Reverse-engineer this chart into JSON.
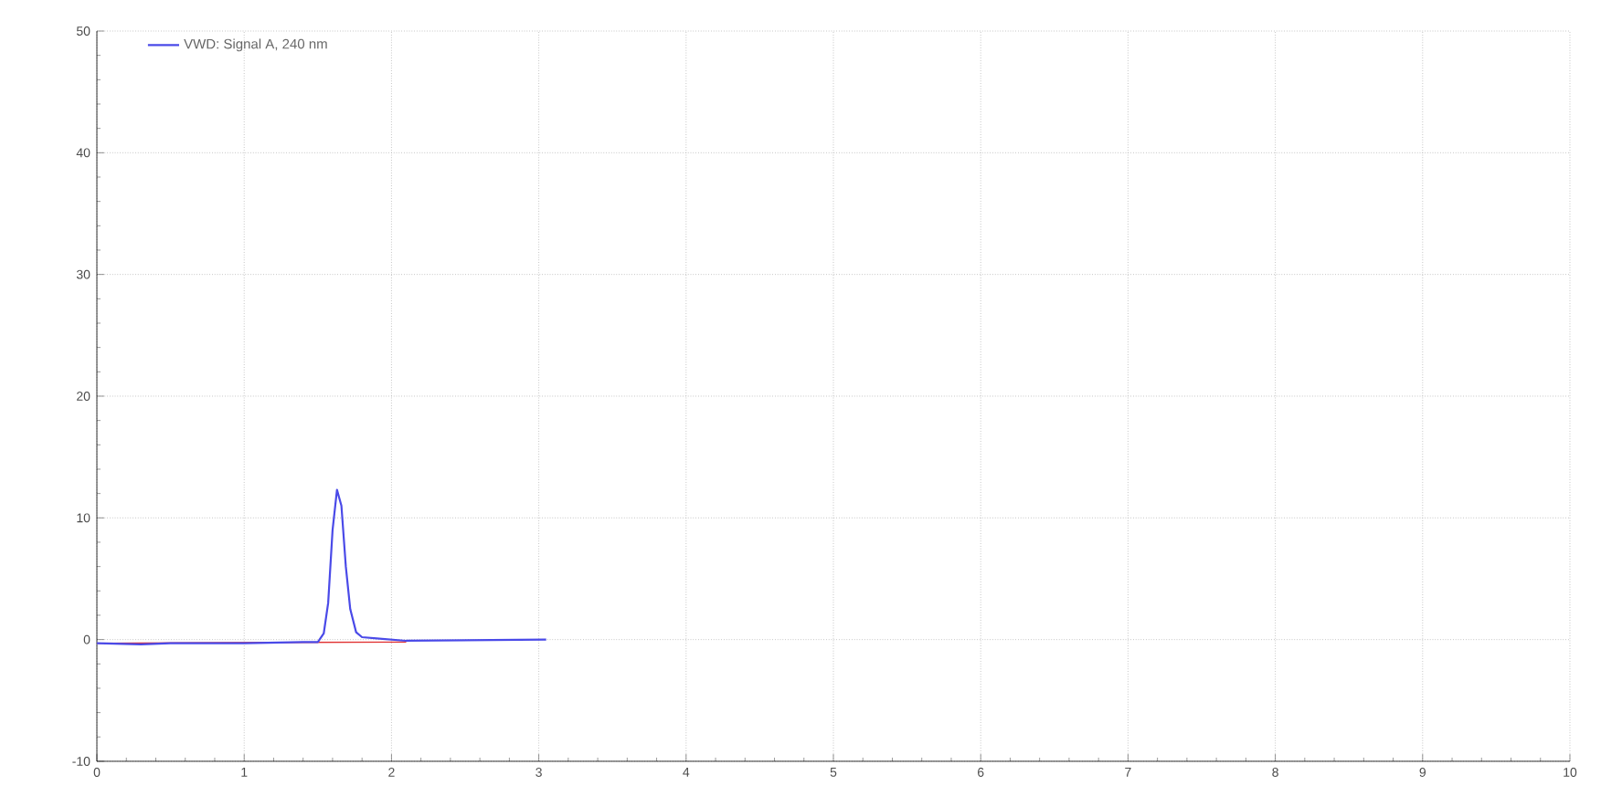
{
  "chart_data": {
    "type": "line",
    "x": [
      0,
      0.3,
      0.5,
      1.0,
      1.4,
      1.5,
      1.54,
      1.57,
      1.6,
      1.63,
      1.66,
      1.69,
      1.72,
      1.76,
      1.8,
      1.9,
      2.0,
      2.1,
      3.05
    ],
    "series": [
      {
        "name": "VWD: Signal A, 240 nm",
        "color": "#4a4ae8",
        "values": [
          -0.3,
          -0.4,
          -0.3,
          -0.3,
          -0.2,
          -0.2,
          0.5,
          3,
          9,
          12.3,
          11,
          6,
          2.5,
          0.6,
          0.2,
          0.1,
          0,
          -0.1,
          0
        ]
      },
      {
        "color": "#e03030",
        "x": [
          0,
          2.1
        ],
        "values": [
          -0.3,
          -0.2
        ]
      }
    ],
    "xlim": [
      0,
      10
    ],
    "xticks": [
      0,
      1,
      2,
      3,
      4,
      5,
      6,
      7,
      8,
      9,
      10
    ],
    "ylim": [
      -10,
      50
    ],
    "yticks": [
      -10,
      0,
      10,
      20,
      30,
      40,
      50
    ],
    "grid": true,
    "legend": "top left",
    "line_style": "solid",
    "marker": "none"
  }
}
